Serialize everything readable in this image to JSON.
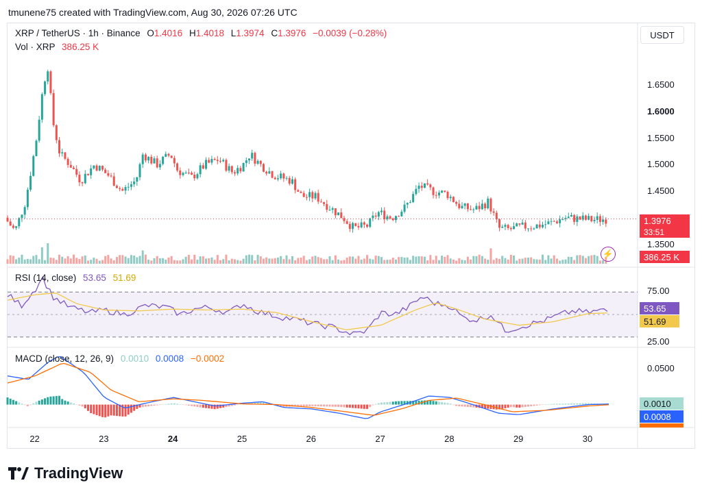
{
  "header": {
    "credit": "tmunene75 created with TradingView.com, Aug 30, 2026 07:26 UTC"
  },
  "legend": {
    "symbol": "XRP / TetherUS · 1h · Binance",
    "o_label": "O",
    "o_value": "1.4016",
    "h_label": "H",
    "h_value": "1.4018",
    "l_label": "L",
    "l_value": "1.3974",
    "c_label": "C",
    "c_value": "1.3976",
    "change": "−0.0039 (−0.28%)",
    "vol_label": "Vol · XRP",
    "vol_value": "386.25 K"
  },
  "currency_button": "USDT",
  "price_axis": {
    "ticks": [
      {
        "label": "1.6500",
        "value": 1.65
      },
      {
        "label": "1.6000",
        "value": 1.6
      },
      {
        "label": "1.5500",
        "value": 1.55
      },
      {
        "label": "1.5000",
        "value": 1.5
      },
      {
        "label": "1.4500",
        "value": 1.45
      },
      {
        "label": "1.3500",
        "value": 1.35
      }
    ],
    "last_price": "1.3976",
    "countdown": "33:51",
    "volume_badge": "386.25 K"
  },
  "rsi": {
    "label": "RSI (14, close)",
    "value": "53.65",
    "ma_value": "51.69",
    "ticks": [
      {
        "label": "75.00",
        "value": 75
      },
      {
        "label": "25.00",
        "value": 25
      }
    ]
  },
  "macd": {
    "label": "MACD (close, 12, 26, 9)",
    "hist_value": "0.0010",
    "macd_value": "0.0008",
    "signal_value": "−0.0002",
    "ticks": [
      {
        "label": "0.0500",
        "value": 0.05
      }
    ]
  },
  "x_axis": {
    "ticks": [
      {
        "label": "22",
        "bold": false
      },
      {
        "label": "23",
        "bold": false
      },
      {
        "label": "24",
        "bold": true
      },
      {
        "label": "25",
        "bold": false
      },
      {
        "label": "26",
        "bold": false
      },
      {
        "label": "27",
        "bold": false
      },
      {
        "label": "28",
        "bold": false
      },
      {
        "label": "29",
        "bold": false
      },
      {
        "label": "30",
        "bold": false
      }
    ]
  },
  "brand": "TradingView",
  "colors": {
    "up": "#26a69a",
    "down": "#ef5350",
    "rsi_line": "#7e57c2",
    "rsi_ma": "#f2c94c",
    "macd_line": "#2962ff",
    "signal_line": "#ff6d00",
    "vol_up": "#8fcbc4",
    "vol_down": "#f5a4a2"
  },
  "chart_data": {
    "type": "candlestick",
    "interval": "1h",
    "x_start_day": 21.6,
    "x_end_day": 30.3,
    "price_ylim": [
      1.33,
      1.72
    ],
    "price_path": [
      [
        21.6,
        1.4
      ],
      [
        21.75,
        1.375
      ],
      [
        21.9,
        1.43
      ],
      [
        22.05,
        1.54
      ],
      [
        22.15,
        1.64
      ],
      [
        22.22,
        1.69
      ],
      [
        22.3,
        1.58
      ],
      [
        22.4,
        1.52
      ],
      [
        22.55,
        1.5
      ],
      [
        22.7,
        1.47
      ],
      [
        22.9,
        1.5
      ],
      [
        23.1,
        1.48
      ],
      [
        23.3,
        1.45
      ],
      [
        23.5,
        1.47
      ],
      [
        23.6,
        1.52
      ],
      [
        23.8,
        1.5
      ],
      [
        24.0,
        1.52
      ],
      [
        24.1,
        1.49
      ],
      [
        24.3,
        1.475
      ],
      [
        24.5,
        1.5
      ],
      [
        24.7,
        1.51
      ],
      [
        24.9,
        1.485
      ],
      [
        25.05,
        1.5
      ],
      [
        25.15,
        1.52
      ],
      [
        25.3,
        1.5
      ],
      [
        25.5,
        1.48
      ],
      [
        25.75,
        1.47
      ],
      [
        25.9,
        1.44
      ],
      [
        26.1,
        1.44
      ],
      [
        26.3,
        1.42
      ],
      [
        26.5,
        1.4
      ],
      [
        26.65,
        1.38
      ],
      [
        26.85,
        1.385
      ],
      [
        27.0,
        1.41
      ],
      [
        27.2,
        1.4
      ],
      [
        27.4,
        1.42
      ],
      [
        27.6,
        1.46
      ],
      [
        27.8,
        1.45
      ],
      [
        28.0,
        1.445
      ],
      [
        28.2,
        1.42
      ],
      [
        28.4,
        1.415
      ],
      [
        28.6,
        1.43
      ],
      [
        28.75,
        1.38
      ],
      [
        28.9,
        1.378
      ],
      [
        29.1,
        1.383
      ],
      [
        29.3,
        1.385
      ],
      [
        29.5,
        1.39
      ],
      [
        29.7,
        1.4
      ],
      [
        29.9,
        1.398
      ],
      [
        30.1,
        1.396
      ],
      [
        30.3,
        1.3976
      ]
    ],
    "volume_spikes": [
      {
        "day": 22.1,
        "volume_rel": 0.8
      },
      {
        "day": 22.18,
        "volume_rel": 1.0
      },
      {
        "day": 28.6,
        "volume_rel": 0.75
      },
      {
        "day": 23.55,
        "volume_rel": 0.65
      }
    ],
    "rsi_ylim": [
      15,
      95
    ],
    "rsi_path": [
      [
        21.6,
        72
      ],
      [
        21.8,
        60
      ],
      [
        22.0,
        78
      ],
      [
        22.1,
        92
      ],
      [
        22.25,
        70
      ],
      [
        22.5,
        58
      ],
      [
        22.8,
        52
      ],
      [
        23.0,
        55
      ],
      [
        23.3,
        50
      ],
      [
        23.6,
        60
      ],
      [
        23.9,
        58
      ],
      [
        24.1,
        50
      ],
      [
        24.3,
        56
      ],
      [
        24.5,
        58
      ],
      [
        24.8,
        52
      ],
      [
        25.0,
        62
      ],
      [
        25.2,
        54
      ],
      [
        25.5,
        48
      ],
      [
        25.8,
        44
      ],
      [
        26.0,
        40
      ],
      [
        26.3,
        36
      ],
      [
        26.6,
        28
      ],
      [
        26.8,
        32
      ],
      [
        27.0,
        52
      ],
      [
        27.2,
        50
      ],
      [
        27.4,
        58
      ],
      [
        27.6,
        70
      ],
      [
        27.8,
        62
      ],
      [
        28.0,
        60
      ],
      [
        28.2,
        46
      ],
      [
        28.4,
        44
      ],
      [
        28.6,
        50
      ],
      [
        28.8,
        32
      ],
      [
        29.0,
        36
      ],
      [
        29.2,
        40
      ],
      [
        29.4,
        44
      ],
      [
        29.6,
        50
      ],
      [
        29.8,
        54
      ],
      [
        30.0,
        52
      ],
      [
        30.2,
        55
      ],
      [
        30.28,
        53.65
      ]
    ],
    "rsi_ma_path": [
      [
        21.6,
        66
      ],
      [
        22.0,
        72
      ],
      [
        22.3,
        74
      ],
      [
        22.6,
        62
      ],
      [
        23.0,
        55
      ],
      [
        23.5,
        54
      ],
      [
        24.0,
        56
      ],
      [
        24.5,
        55
      ],
      [
        25.0,
        56
      ],
      [
        25.5,
        52
      ],
      [
        26.0,
        42
      ],
      [
        26.5,
        33
      ],
      [
        27.0,
        38
      ],
      [
        27.5,
        55
      ],
      [
        27.8,
        63
      ],
      [
        28.1,
        56
      ],
      [
        28.5,
        45
      ],
      [
        29.0,
        38
      ],
      [
        29.5,
        42
      ],
      [
        30.0,
        51
      ],
      [
        30.28,
        51.69
      ]
    ],
    "macd_ylim": [
      -0.03,
      0.075
    ],
    "macd_path": [
      [
        21.6,
        0.04
      ],
      [
        21.9,
        0.035
      ],
      [
        22.2,
        0.06
      ],
      [
        22.35,
        0.068
      ],
      [
        22.7,
        0.045
      ],
      [
        23.0,
        0.01
      ],
      [
        23.3,
        -0.005
      ],
      [
        23.6,
        0.002
      ],
      [
        24.0,
        0.01
      ],
      [
        24.3,
        0.004
      ],
      [
        24.6,
        -0.002
      ],
      [
        25.0,
        0.002
      ],
      [
        25.3,
        0.004
      ],
      [
        25.6,
        -0.004
      ],
      [
        26.0,
        -0.006
      ],
      [
        26.4,
        -0.012
      ],
      [
        26.8,
        -0.02
      ],
      [
        27.0,
        -0.01
      ],
      [
        27.4,
        0.002
      ],
      [
        27.7,
        0.012
      ],
      [
        28.0,
        0.01
      ],
      [
        28.4,
        -0.002
      ],
      [
        28.7,
        -0.012
      ],
      [
        29.0,
        -0.014
      ],
      [
        29.5,
        -0.006
      ],
      [
        30.0,
        0.0
      ],
      [
        30.3,
        0.0008
      ]
    ],
    "signal_path": [
      [
        21.6,
        0.03
      ],
      [
        22.0,
        0.04
      ],
      [
        22.4,
        0.058
      ],
      [
        22.8,
        0.045
      ],
      [
        23.1,
        0.02
      ],
      [
        23.5,
        0.004
      ],
      [
        24.0,
        0.008
      ],
      [
        24.4,
        0.006
      ],
      [
        25.0,
        0.001
      ],
      [
        25.5,
        0.0
      ],
      [
        26.0,
        -0.004
      ],
      [
        26.5,
        -0.01
      ],
      [
        26.9,
        -0.015
      ],
      [
        27.3,
        -0.006
      ],
      [
        27.7,
        0.006
      ],
      [
        28.1,
        0.009
      ],
      [
        28.5,
        0.0
      ],
      [
        28.9,
        -0.01
      ],
      [
        29.4,
        -0.008
      ],
      [
        30.0,
        -0.002
      ],
      [
        30.3,
        -0.0002
      ]
    ]
  }
}
